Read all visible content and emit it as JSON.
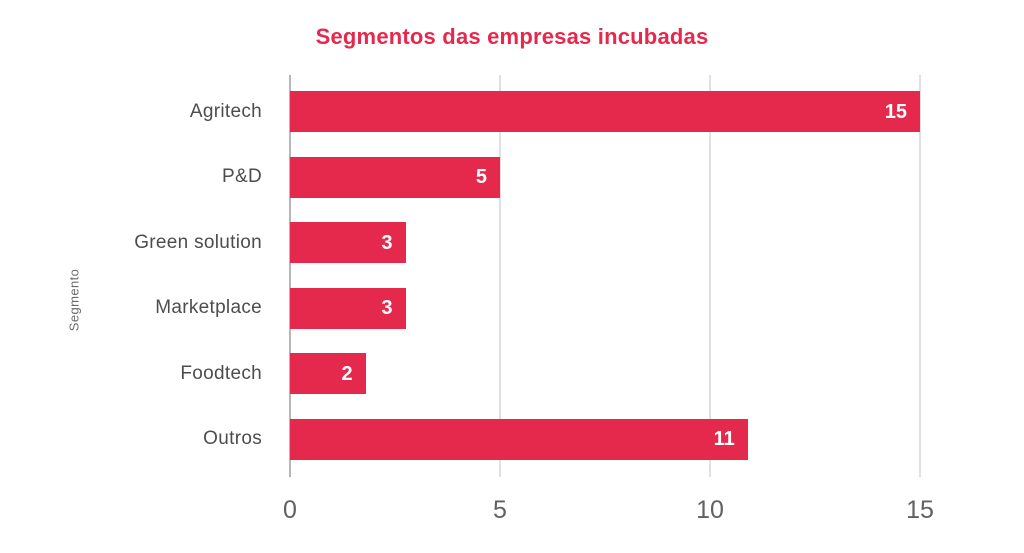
{
  "chart_data": {
    "type": "bar",
    "orientation": "horizontal",
    "title": "Segmentos das empresas incubadas",
    "ylabel": "Segmento",
    "xlabel": "",
    "categories": [
      "Agritech",
      "P&D",
      "Green solution",
      "Marketplace",
      "Foodtech",
      "Outros"
    ],
    "values": [
      15,
      5,
      3,
      3,
      2,
      11
    ],
    "bar_visual_values": [
      15,
      5,
      2.75,
      2.75,
      1.8,
      10.9
    ],
    "x_ticks": [
      0,
      5,
      10,
      15
    ],
    "xlim": [
      0,
      15
    ],
    "grid": "vertical",
    "legend": "none",
    "value_label_position": "inside-end",
    "colors": {
      "bar": "#e5294d",
      "title": "#e5294d",
      "category_label": "#4d4d4d",
      "tick_label": "#616161",
      "axis_line": "#b7b7b7",
      "gridline": "#e0e0e0",
      "value_label": "#ffffff",
      "background": "#ffffff"
    }
  }
}
